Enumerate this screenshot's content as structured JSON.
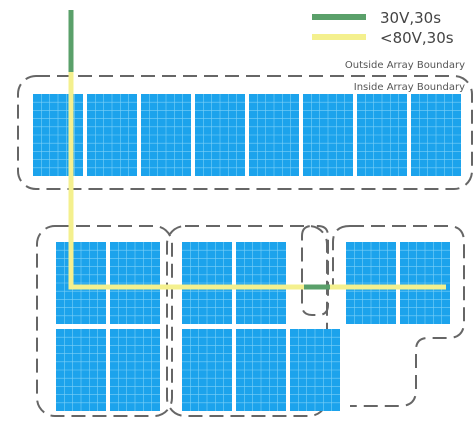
{
  "legend": {
    "items": [
      {
        "label": "30V,30s",
        "color": "#5aa06a"
      },
      {
        "label": "<80V,30s",
        "color": "#f4f08e"
      }
    ]
  },
  "boundaries": {
    "outside_label": "Outside Array Boundary",
    "inside_label": "Inside Array Boundary",
    "stroke_color": "#666666"
  },
  "panel": {
    "fill_color": "#1ca3ec",
    "grid_line_color": "#7cd0f7"
  },
  "panel_groups": [
    {
      "name": "top-row",
      "count": 8
    },
    {
      "name": "left-block",
      "count": 4
    },
    {
      "name": "middle-block",
      "count": 5
    },
    {
      "name": "right-block",
      "count": 2
    }
  ]
}
